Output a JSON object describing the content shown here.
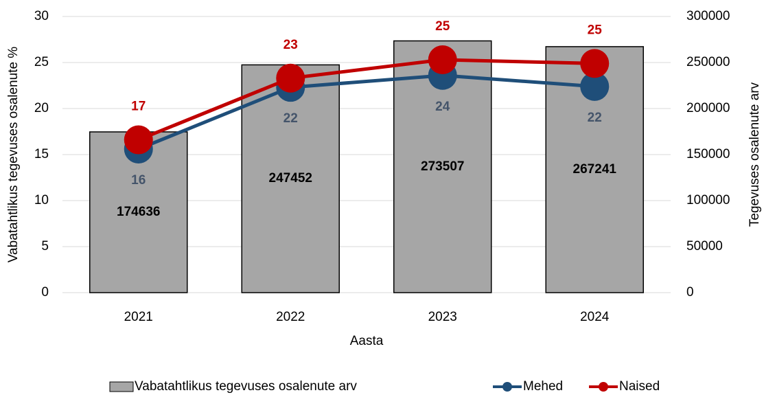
{
  "chart_data": {
    "type": "bar",
    "categories": [
      "2021",
      "2022",
      "2023",
      "2024"
    ],
    "xlabel": "Aasta",
    "ylabel": "Vabatahtlikus tegevuses osalenute %",
    "y2label": "Tegevuses osalenute arv",
    "ylim": [
      0,
      30
    ],
    "yticks": [
      0,
      5,
      10,
      15,
      20,
      25,
      30
    ],
    "y2lim": [
      0,
      300000
    ],
    "y2ticks": [
      0,
      50000,
      100000,
      150000,
      200000,
      250000,
      300000
    ],
    "grid": true,
    "legend": "bottom",
    "series": [
      {
        "name": "Vabatahtlikus tegevuses osalenute arv",
        "type": "bar",
        "axis": "y2",
        "color": "#a6a6a6",
        "values": [
          174636,
          247452,
          273507,
          267241
        ]
      },
      {
        "name": "Mehed",
        "type": "line",
        "color": "#1f4e79",
        "values": [
          15.6,
          22.3,
          23.6,
          22.4
        ],
        "value_labels": [
          "16",
          "22",
          "24",
          "22"
        ]
      },
      {
        "name": "Naised",
        "type": "line",
        "color": "#c00000",
        "values": [
          16.6,
          23.3,
          25.3,
          24.9
        ],
        "value_labels": [
          "17",
          "23",
          "25",
          "25"
        ]
      }
    ]
  }
}
